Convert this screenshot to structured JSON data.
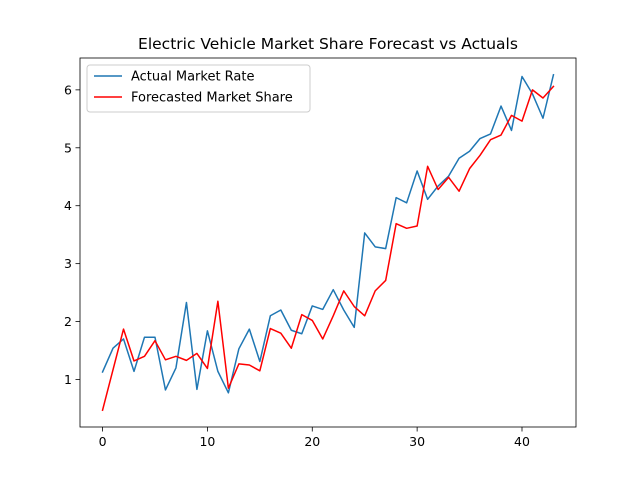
{
  "chart_data": {
    "type": "line",
    "title": "Electric Vehicle Market Share Forecast vs Actuals",
    "xlabel": "",
    "ylabel": "",
    "x": [
      0,
      1,
      2,
      3,
      4,
      5,
      6,
      7,
      8,
      9,
      10,
      11,
      12,
      13,
      14,
      15,
      16,
      17,
      18,
      19,
      20,
      21,
      22,
      23,
      24,
      25,
      26,
      27,
      28,
      29,
      30,
      31,
      32,
      33,
      34,
      35,
      36,
      37,
      38,
      39,
      40,
      41,
      42,
      43
    ],
    "series": [
      {
        "name": "Actual Market Rate",
        "color": "#1f77b4",
        "values": [
          1.13,
          1.54,
          1.7,
          1.14,
          1.73,
          1.73,
          0.82,
          1.2,
          2.33,
          0.83,
          1.84,
          1.14,
          0.77,
          1.53,
          1.87,
          1.31,
          2.1,
          2.2,
          1.85,
          1.79,
          2.27,
          2.21,
          2.55,
          2.2,
          1.9,
          3.53,
          3.29,
          3.26,
          4.14,
          4.05,
          4.6,
          4.11,
          4.34,
          4.51,
          4.82,
          4.94,
          5.16,
          5.24,
          5.72,
          5.3,
          6.23,
          5.93,
          5.51,
          6.26
        ]
      },
      {
        "name": "Forecasted Market Share",
        "color": "#ff0000",
        "values": [
          0.47,
          1.17,
          1.87,
          1.32,
          1.4,
          1.67,
          1.34,
          1.4,
          1.33,
          1.45,
          1.19,
          2.35,
          0.85,
          1.27,
          1.25,
          1.15,
          1.88,
          1.8,
          1.54,
          2.12,
          2.02,
          1.7,
          2.1,
          2.53,
          2.26,
          2.1,
          2.53,
          2.71,
          3.69,
          3.61,
          3.65,
          4.68,
          4.28,
          4.49,
          4.25,
          4.64,
          4.87,
          5.14,
          5.22,
          5.56,
          5.46,
          6.0,
          5.86,
          6.06
        ]
      }
    ],
    "xlim": [
      -2.15,
      45.15
    ],
    "ylim": [
      0.18,
      6.55
    ],
    "xticks": [
      0,
      10,
      20,
      30,
      40
    ],
    "yticks": [
      1,
      2,
      3,
      4,
      5,
      6
    ],
    "xtick_labels": [
      "0",
      "10",
      "20",
      "30",
      "40"
    ],
    "ytick_labels": [
      "1",
      "2",
      "3",
      "4",
      "5",
      "6"
    ],
    "grid": false,
    "legend_position": "top-left"
  }
}
